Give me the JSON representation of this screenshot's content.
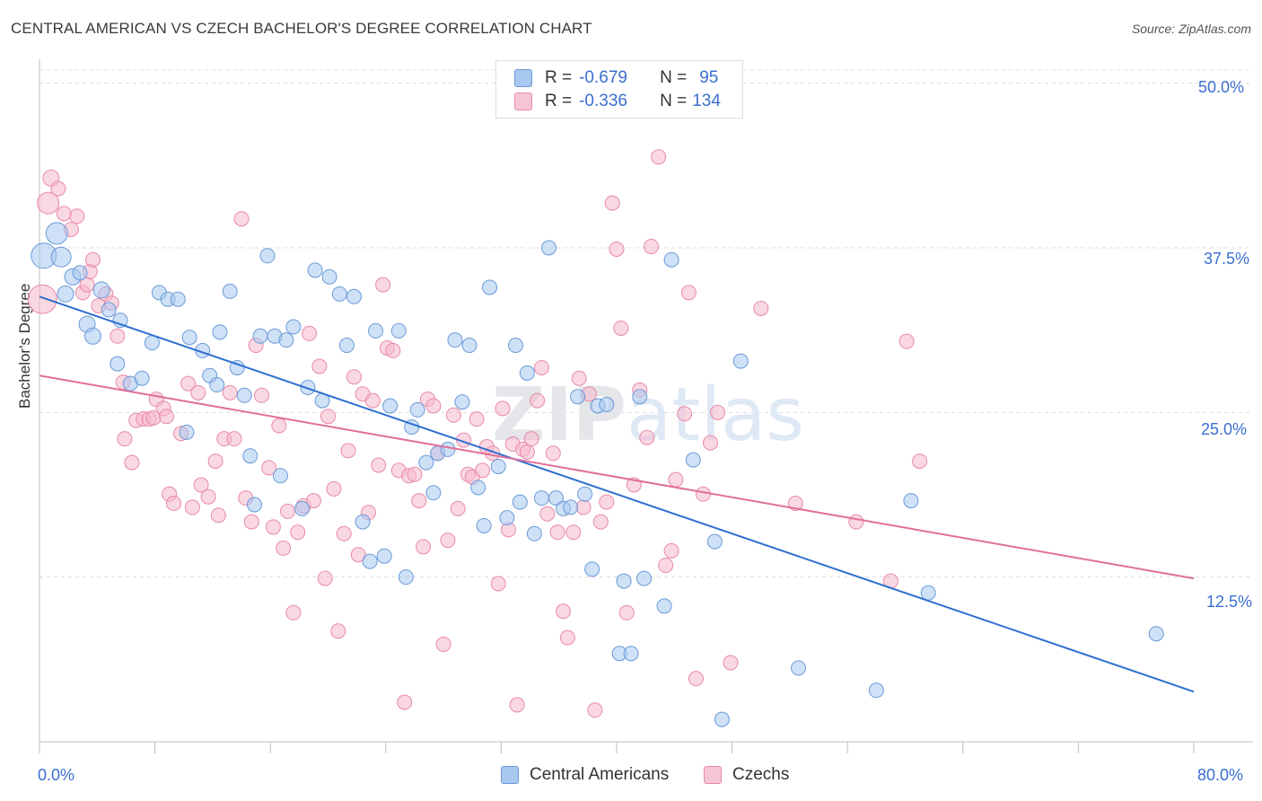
{
  "header": {
    "title": "CENTRAL AMERICAN VS CZECH BACHELOR'S DEGREE CORRELATION CHART",
    "source": "Source: ZipAtlas.com"
  },
  "legend_top": {
    "row1": {
      "r_label": "R =",
      "r_value": "-0.679",
      "n_label": "N =",
      "n_value": "95"
    },
    "row2": {
      "r_label": "R =",
      "r_value": "-0.336",
      "n_label": "N =",
      "n_value": "134"
    }
  },
  "legend_bottom": {
    "series1": "Central Americans",
    "series2": "Czechs"
  },
  "axis": {
    "ylabel": "Bachelor's Degree",
    "x_min_label": "0.0%",
    "x_max_label": "80.0%",
    "y_ticks": [
      "12.5%",
      "25.0%",
      "37.5%",
      "50.0%"
    ]
  },
  "watermark": "ZIPatlas",
  "colors": {
    "blue_fill": "#a8c8f0",
    "blue_stroke": "#6a9ad8",
    "blue_line": "#2f6fd0",
    "pink_fill": "#f6b8cb",
    "pink_stroke": "#e88aa8",
    "pink_line": "#e0709a",
    "tick_text": "#3a6fd0"
  },
  "chart_data": {
    "type": "scatter",
    "title": "CENTRAL AMERICAN VS CZECH BACHELOR'S DEGREE CORRELATION CHART",
    "xlabel": "",
    "ylabel": "Bachelor's Degree",
    "xlim": [
      0,
      80
    ],
    "ylim": [
      0,
      51
    ],
    "y_ticks": [
      12.5,
      25.0,
      37.5,
      50.0
    ],
    "grid": true,
    "legend": "top-center",
    "series": [
      {
        "name": "Central Americans",
        "R": -0.679,
        "N": 95,
        "trend": {
          "x": [
            0,
            80
          ],
          "y": [
            33.8,
            3.8
          ]
        },
        "points": [
          [
            0.3,
            36.9,
            14
          ],
          [
            1.2,
            38.6,
            12
          ],
          [
            1.5,
            36.8,
            11
          ],
          [
            1.8,
            34.0,
            9
          ],
          [
            2.3,
            35.3,
            9
          ],
          [
            2.8,
            35.6,
            8
          ],
          [
            3.3,
            31.7,
            9
          ],
          [
            3.7,
            30.8,
            9
          ],
          [
            4.3,
            34.3,
            9
          ],
          [
            4.8,
            32.8,
            8
          ],
          [
            5.6,
            32.0,
            8
          ],
          [
            5.4,
            28.7,
            8
          ],
          [
            6.3,
            27.2,
            8
          ],
          [
            7.1,
            27.6,
            8
          ],
          [
            7.8,
            30.3,
            8
          ],
          [
            8.3,
            34.1,
            8
          ],
          [
            8.9,
            33.6,
            8
          ],
          [
            9.6,
            33.6,
            8
          ],
          [
            10.2,
            23.5,
            8
          ],
          [
            10.4,
            30.7,
            8
          ],
          [
            11.3,
            29.7,
            8
          ],
          [
            11.8,
            27.8,
            8
          ],
          [
            12.3,
            27.1,
            8
          ],
          [
            12.5,
            31.1,
            8
          ],
          [
            13.2,
            34.2,
            8
          ],
          [
            13.7,
            28.4,
            8
          ],
          [
            14.2,
            26.3,
            8
          ],
          [
            14.6,
            21.7,
            8
          ],
          [
            14.9,
            18.0,
            8
          ],
          [
            15.3,
            30.8,
            8
          ],
          [
            15.8,
            36.9,
            8
          ],
          [
            16.3,
            30.8,
            8
          ],
          [
            16.7,
            20.2,
            8
          ],
          [
            17.1,
            30.5,
            8
          ],
          [
            17.6,
            31.5,
            8
          ],
          [
            18.2,
            17.7,
            8
          ],
          [
            18.6,
            26.9,
            8
          ],
          [
            19.1,
            35.8,
            8
          ],
          [
            19.6,
            25.9,
            8
          ],
          [
            20.1,
            35.3,
            8
          ],
          [
            20.8,
            34.0,
            8
          ],
          [
            21.3,
            30.1,
            8
          ],
          [
            21.8,
            33.8,
            8
          ],
          [
            22.4,
            16.7,
            8
          ],
          [
            22.9,
            13.7,
            8
          ],
          [
            23.3,
            31.2,
            8
          ],
          [
            23.9,
            14.1,
            8
          ],
          [
            24.3,
            25.5,
            8
          ],
          [
            24.9,
            31.2,
            8
          ],
          [
            25.4,
            12.5,
            8
          ],
          [
            25.8,
            23.9,
            8
          ],
          [
            26.2,
            25.2,
            8
          ],
          [
            26.8,
            21.2,
            8
          ],
          [
            27.3,
            18.9,
            8
          ],
          [
            27.6,
            21.9,
            8
          ],
          [
            28.3,
            22.2,
            8
          ],
          [
            28.8,
            30.5,
            8
          ],
          [
            29.3,
            25.8,
            8
          ],
          [
            29.8,
            30.1,
            8
          ],
          [
            30.4,
            19.3,
            8
          ],
          [
            30.8,
            16.4,
            8
          ],
          [
            31.2,
            34.5,
            8
          ],
          [
            31.8,
            20.9,
            8
          ],
          [
            32.4,
            17.0,
            8
          ],
          [
            33.0,
            30.1,
            8
          ],
          [
            33.3,
            18.2,
            8
          ],
          [
            33.8,
            28.0,
            8
          ],
          [
            34.3,
            15.8,
            8
          ],
          [
            34.8,
            18.5,
            8
          ],
          [
            35.3,
            37.5,
            8
          ],
          [
            35.8,
            18.5,
            8
          ],
          [
            36.3,
            17.7,
            8
          ],
          [
            36.8,
            17.8,
            8
          ],
          [
            37.3,
            26.2,
            8
          ],
          [
            37.8,
            18.8,
            8
          ],
          [
            38.3,
            13.1,
            8
          ],
          [
            38.7,
            25.5,
            8
          ],
          [
            39.3,
            25.6,
            8
          ],
          [
            40.2,
            6.7,
            8
          ],
          [
            40.5,
            12.2,
            8
          ],
          [
            41.0,
            6.7,
            8
          ],
          [
            41.6,
            26.2,
            8
          ],
          [
            41.9,
            12.4,
            8
          ],
          [
            43.3,
            10.3,
            8
          ],
          [
            43.8,
            36.6,
            8
          ],
          [
            45.3,
            21.4,
            8
          ],
          [
            46.8,
            15.2,
            8
          ],
          [
            47.3,
            1.7,
            8
          ],
          [
            48.6,
            28.9,
            8
          ],
          [
            60.4,
            18.3,
            8
          ],
          [
            61.6,
            11.3,
            8
          ],
          [
            77.4,
            8.2,
            8
          ],
          [
            58.0,
            3.9,
            8
          ],
          [
            52.6,
            5.6,
            8
          ]
        ]
      },
      {
        "name": "Czechs",
        "R": -0.336,
        "N": 134,
        "trend": {
          "x": [
            0,
            80
          ],
          "y": [
            27.8,
            12.4
          ]
        },
        "points": [
          [
            0.2,
            33.6,
            16
          ],
          [
            0.6,
            40.9,
            12
          ],
          [
            0.8,
            42.8,
            9
          ],
          [
            1.3,
            42.0,
            8
          ],
          [
            1.7,
            40.1,
            8
          ],
          [
            2.2,
            38.9,
            8
          ],
          [
            2.6,
            39.9,
            8
          ],
          [
            3.0,
            34.1,
            8
          ],
          [
            3.3,
            34.7,
            8
          ],
          [
            3.5,
            35.7,
            8
          ],
          [
            3.7,
            36.6,
            8
          ],
          [
            4.1,
            33.1,
            8
          ],
          [
            4.6,
            34.0,
            8
          ],
          [
            5.0,
            33.3,
            8
          ],
          [
            5.4,
            30.8,
            8
          ],
          [
            5.8,
            27.3,
            8
          ],
          [
            5.9,
            23.0,
            8
          ],
          [
            6.4,
            21.2,
            8
          ],
          [
            6.7,
            24.4,
            8
          ],
          [
            7.2,
            24.5,
            8
          ],
          [
            7.6,
            24.5,
            8
          ],
          [
            7.9,
            24.6,
            8
          ],
          [
            8.1,
            26.0,
            8
          ],
          [
            8.6,
            25.3,
            8
          ],
          [
            8.8,
            24.7,
            8
          ],
          [
            9.0,
            18.8,
            8
          ],
          [
            9.3,
            18.1,
            8
          ],
          [
            9.8,
            23.4,
            8
          ],
          [
            10.3,
            27.2,
            8
          ],
          [
            10.6,
            17.8,
            8
          ],
          [
            11.0,
            26.5,
            8
          ],
          [
            11.2,
            19.5,
            8
          ],
          [
            11.7,
            18.6,
            8
          ],
          [
            12.2,
            21.3,
            8
          ],
          [
            12.4,
            17.2,
            8
          ],
          [
            12.8,
            23.0,
            8
          ],
          [
            13.2,
            26.5,
            8
          ],
          [
            13.5,
            23.0,
            8
          ],
          [
            14.0,
            39.7,
            8
          ],
          [
            14.3,
            18.5,
            8
          ],
          [
            14.7,
            16.7,
            8
          ],
          [
            15.0,
            30.1,
            8
          ],
          [
            15.4,
            26.3,
            8
          ],
          [
            15.9,
            20.8,
            8
          ],
          [
            16.2,
            16.3,
            8
          ],
          [
            16.6,
            24.0,
            8
          ],
          [
            16.9,
            14.7,
            8
          ],
          [
            17.2,
            17.5,
            8
          ],
          [
            17.6,
            9.8,
            8
          ],
          [
            17.9,
            15.9,
            8
          ],
          [
            18.3,
            17.9,
            8
          ],
          [
            18.7,
            31.0,
            8
          ],
          [
            19.0,
            18.3,
            8
          ],
          [
            19.4,
            28.5,
            8
          ],
          [
            19.8,
            12.4,
            8
          ],
          [
            20.0,
            24.7,
            8
          ],
          [
            20.4,
            19.2,
            8
          ],
          [
            20.7,
            8.4,
            8
          ],
          [
            21.1,
            15.8,
            8
          ],
          [
            21.4,
            22.1,
            8
          ],
          [
            21.8,
            27.7,
            8
          ],
          [
            22.1,
            14.2,
            8
          ],
          [
            22.4,
            26.4,
            8
          ],
          [
            22.8,
            17.4,
            8
          ],
          [
            23.1,
            25.9,
            8
          ],
          [
            23.5,
            21.0,
            8
          ],
          [
            23.8,
            34.7,
            8
          ],
          [
            24.1,
            29.9,
            8
          ],
          [
            24.5,
            29.7,
            8
          ],
          [
            24.9,
            20.6,
            8
          ],
          [
            25.3,
            3.0,
            8
          ],
          [
            25.6,
            20.2,
            8
          ],
          [
            26.0,
            20.3,
            8
          ],
          [
            26.3,
            18.3,
            8
          ],
          [
            26.6,
            14.8,
            8
          ],
          [
            26.9,
            26.0,
            8
          ],
          [
            27.3,
            25.5,
            8
          ],
          [
            27.6,
            21.9,
            8
          ],
          [
            28.0,
            7.4,
            8
          ],
          [
            28.3,
            15.3,
            8
          ],
          [
            28.7,
            24.8,
            8
          ],
          [
            29.0,
            17.7,
            8
          ],
          [
            29.4,
            22.9,
            8
          ],
          [
            29.7,
            20.3,
            8
          ],
          [
            30.0,
            20.1,
            8
          ],
          [
            30.3,
            24.5,
            8
          ],
          [
            30.7,
            20.6,
            8
          ],
          [
            31.0,
            22.4,
            8
          ],
          [
            31.4,
            21.9,
            8
          ],
          [
            31.8,
            12.0,
            8
          ],
          [
            32.1,
            25.3,
            8
          ],
          [
            32.5,
            16.1,
            8
          ],
          [
            32.8,
            22.6,
            8
          ],
          [
            33.1,
            2.8,
            8
          ],
          [
            33.5,
            22.2,
            8
          ],
          [
            33.8,
            22.0,
            8
          ],
          [
            34.1,
            23.0,
            8
          ],
          [
            34.5,
            25.9,
            8
          ],
          [
            34.8,
            28.4,
            8
          ],
          [
            35.2,
            17.3,
            8
          ],
          [
            35.6,
            21.9,
            8
          ],
          [
            35.9,
            15.9,
            8
          ],
          [
            36.3,
            9.9,
            8
          ],
          [
            36.6,
            7.9,
            8
          ],
          [
            37.0,
            15.9,
            8
          ],
          [
            37.4,
            27.6,
            8
          ],
          [
            37.7,
            17.8,
            8
          ],
          [
            38.1,
            26.4,
            8
          ],
          [
            38.5,
            2.4,
            8
          ],
          [
            38.9,
            16.7,
            8
          ],
          [
            39.3,
            18.2,
            8
          ],
          [
            39.7,
            40.9,
            8
          ],
          [
            40.0,
            37.4,
            8
          ],
          [
            40.3,
            31.4,
            8
          ],
          [
            40.7,
            9.8,
            8
          ],
          [
            41.2,
            19.5,
            8
          ],
          [
            41.6,
            26.7,
            8
          ],
          [
            42.1,
            23.1,
            8
          ],
          [
            42.4,
            37.6,
            8
          ],
          [
            42.9,
            44.4,
            8
          ],
          [
            43.4,
            13.4,
            8
          ],
          [
            43.8,
            14.5,
            8
          ],
          [
            44.1,
            19.9,
            8
          ],
          [
            44.7,
            24.9,
            8
          ],
          [
            45.0,
            34.1,
            8
          ],
          [
            45.5,
            4.8,
            8
          ],
          [
            46.0,
            18.8,
            8
          ],
          [
            46.5,
            22.7,
            8
          ],
          [
            47.0,
            25.0,
            8
          ],
          [
            47.9,
            6.0,
            8
          ],
          [
            50.0,
            32.9,
            8
          ],
          [
            52.4,
            18.1,
            8
          ],
          [
            56.6,
            16.7,
            8
          ],
          [
            59.0,
            12.2,
            8
          ],
          [
            60.1,
            30.4,
            8
          ],
          [
            61.0,
            21.3,
            8
          ]
        ]
      }
    ]
  }
}
